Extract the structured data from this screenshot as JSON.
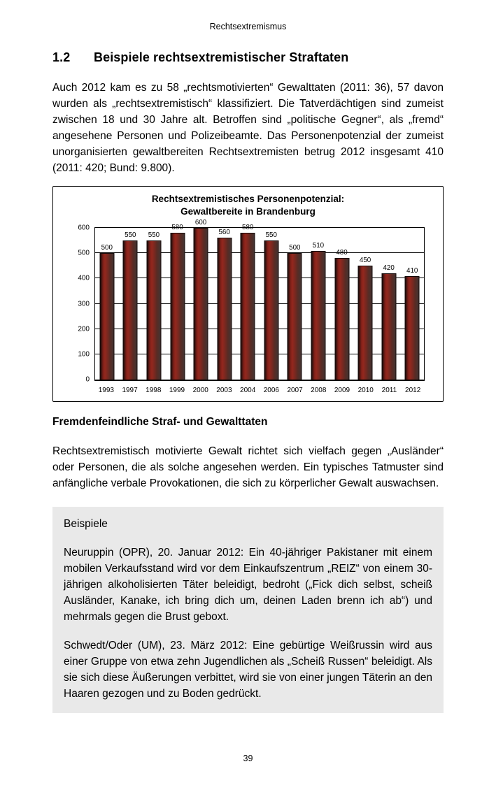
{
  "page": {
    "running_header": "Rechtsextremismus",
    "page_number": "39"
  },
  "section": {
    "number": "1.2",
    "title": "Beispiele rechtsextremistischer Straftaten"
  },
  "intro_paragraph": "Auch 2012 kam es zu 58 „rechtsmotivierten“ Gewalttaten (2011: 36), 57 davon wurden als „rechtsextremistisch“ klassifiziert. Die Tatverdächtigen sind zumeist zwischen 18 und 30 Jahre alt. Betroffen sind „politische Gegner“, als „fremd“ angesehene Personen und Polizeibeamte. Das Personenpotenzial der zumeist unorganisierten gewaltbereiten Rechtsextremisten betrug 2012 insgesamt 410 (2011: 420; Bund: 9.800).",
  "chart_data": {
    "type": "bar",
    "title_lines": [
      "Rechtsextremistisches Personenpotenzial:",
      "Gewaltbereite in Brandenburg"
    ],
    "categories": [
      "1993",
      "1997",
      "1998",
      "1999",
      "2000",
      "2003",
      "2004",
      "2006",
      "2007",
      "2008",
      "2009",
      "2010",
      "2011",
      "2012"
    ],
    "values": [
      500,
      550,
      550,
      580,
      600,
      560,
      580,
      550,
      500,
      510,
      480,
      450,
      420,
      410
    ],
    "xlabel": "",
    "ylabel": "",
    "ylim": [
      0,
      600
    ],
    "ytick_step": 100,
    "grid": true,
    "legend": false,
    "data_labels": true,
    "bar_color": "#93281e",
    "bar_edge_color": "#140808"
  },
  "xeno_section": {
    "heading": "Fremdenfeindliche Straf- und Gewalttaten",
    "body": "Rechtsextremistisch motivierte Gewalt richtet sich vielfach gegen „Ausländer“ oder Personen, die als solche angesehen werden. Ein typisches Tatmuster sind anfängliche verbale Provokationen, die sich zu körperlicher Gewalt auswachsen."
  },
  "examples_box": {
    "label": "Beispiele",
    "items": [
      "Neuruppin (OPR), 20. Januar 2012: Ein 40-jähriger Pakistaner mit einem mobilen Verkaufsstand wird vor dem Einkaufszentrum „REIZ“ von einem 30-jährigen alkoholisierten Täter beleidigt, bedroht („Fick dich selbst, scheiß Ausländer, Kanake, ich bring dich um, deinen Laden brenn ich ab“) und mehrmals gegen die Brust geboxt.",
      "Schwedt/Oder (UM), 23. März 2012: Eine gebürtige Weißrussin wird aus einer Gruppe von etwa zehn Jugendlichen als „Scheiß Russen“ beleidigt. Als sie sich diese Äußerungen verbittet, wird sie von einer jungen Täterin an den Haaren gezogen und zu Boden gedrückt."
    ]
  }
}
